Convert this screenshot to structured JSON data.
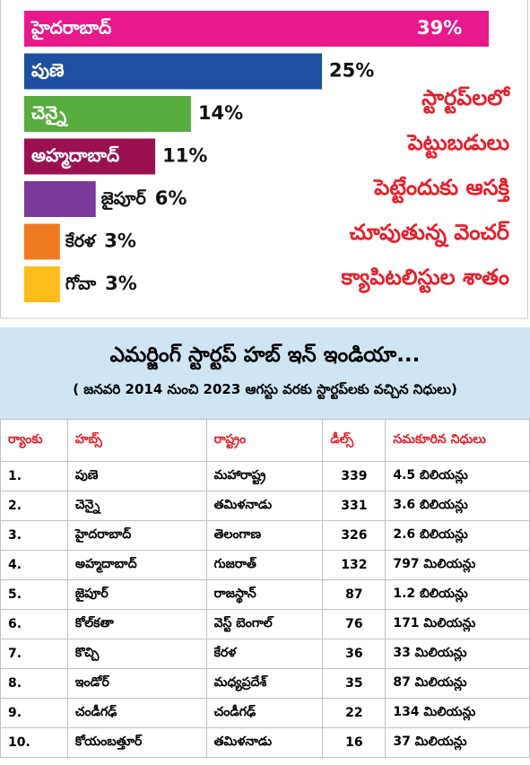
{
  "chart_data": {
    "type": "bar",
    "orientation": "horizontal",
    "title_lines": [
      "స్టార్టప్‌లలో",
      "పెట్టుబడులు",
      "పెట్టేందుకు ఆసక్తి",
      "చూపుతున్న వెంచర్",
      "క్యాపిటలిస్టుల శాతం"
    ],
    "categories": [
      "హైదరాబాద్",
      "పుణె",
      "చెన్నై",
      "అహ్మదాబాద్",
      "జైపూర్",
      "కేరళ",
      "గోవా"
    ],
    "values": [
      39,
      25,
      14,
      11,
      6,
      3,
      3
    ],
    "value_labels": [
      "39%",
      "25%",
      "14%",
      "11%",
      "6%",
      "3%",
      "3%"
    ],
    "colors": [
      "#e8198b",
      "#1f4fa0",
      "#58ad3f",
      "#9b1150",
      "#7a3a9c",
      "#f07a22",
      "#fbbd1b"
    ]
  },
  "table": {
    "title": "ఎమర్జింగ్ స్టార్టప్ హబ్ ఇన్ ఇండియా...",
    "subtitle": "( జనవరి 2014 నుంచి 2023 ఆగస్టు వరకు స్టార్టప్‌లకు వచ్చిన నిధులు)",
    "columns": [
      "ర్యాంకు",
      "హబ్స్",
      "రాష్ట్రం",
      "డీల్స్",
      "సమకూరిన నిధులు"
    ],
    "rows": [
      [
        "1.",
        "పుణె",
        "మహారాష్ట్ర",
        "339",
        "4.5 బిలియన్లు"
      ],
      [
        "2.",
        "చెన్నై",
        "తమిళనాడు",
        "331",
        "3.6 బిలియన్లు"
      ],
      [
        "3.",
        "హైదరాబాద్",
        "తెలంగాణ",
        "326",
        "2.6 బిలియన్లు"
      ],
      [
        "4.",
        "అహ్మదాబాద్",
        "గుజరాత్",
        "132",
        "797 మిలియన్లు"
      ],
      [
        "5.",
        "జైపూర్",
        "రాజస్థాన్",
        "87",
        "1.2 బిలియన్లు"
      ],
      [
        "6.",
        "కోల్‌కతా",
        "వెస్ట్ బెంగాల్",
        "76",
        "171 మిలియన్లు"
      ],
      [
        "7.",
        "కొచ్చి",
        "కేరళ",
        "36",
        "33 మిలియన్లు"
      ],
      [
        "8.",
        "ఇండోర్",
        "మధ్యప్రదేశ్",
        "35",
        "87 మిలియన్లు"
      ],
      [
        "9.",
        "చండీగఢ్",
        "చండీగఢ్",
        "22",
        "134 మిలియన్లు"
      ],
      [
        "10.",
        "కోయంబత్తూర్",
        "తమిళనాడు",
        "16",
        "37 మిలియన్లు"
      ]
    ]
  }
}
